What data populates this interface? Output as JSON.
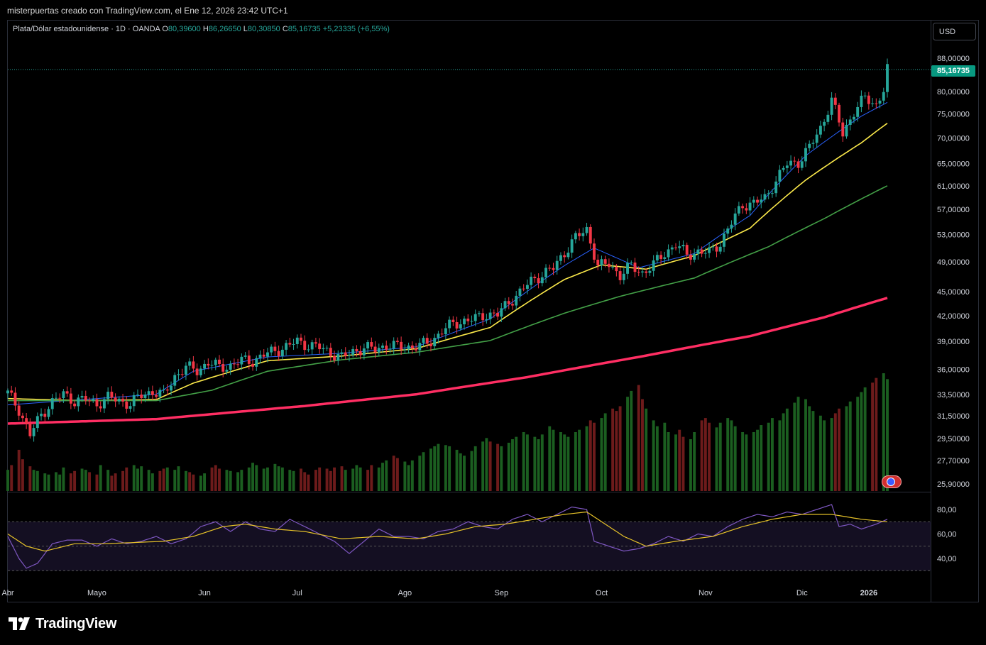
{
  "header": {
    "title": "misterpuertas creado con TradingView.com, el Ene 12, 2026 23:42 UTC+1"
  },
  "legend": {
    "symbol": "Plata/Dólar estadounidense · 1D · OANDA",
    "o_label": "O",
    "o_value": "80,39600",
    "h_label": "H",
    "h_value": "86,26650",
    "l_label": "L",
    "l_value": "80,30850",
    "c_label": "C",
    "c_value": "85,16735",
    "change": "+5,23335 (+6,55%)"
  },
  "currency_button": "USD",
  "last_price_tag": "85,16735",
  "brand": "TradingView",
  "colors": {
    "up": "#26a69a",
    "down": "#f23645",
    "volume_up": "#1b5e20",
    "volume_down": "#6d1b1b",
    "ema_fast": "#2962ff",
    "ema_mid": "#fbe94a",
    "ema_slow": "#43a047",
    "ema_long": "#ff2e63",
    "rsi": "#7e57c2",
    "rsi_ma": "#e6c229"
  },
  "chart_data": [
    {
      "type": "candlestick",
      "title": "",
      "y_axis_labels": [
        "88,00000",
        "80,00000",
        "75,00000",
        "70,00000",
        "65,00000",
        "61,00000",
        "57,00000",
        "53,00000",
        "49,00000",
        "45,00000",
        "42,00000",
        "39,00000",
        "36,00000",
        "33,50000",
        "31,50000",
        "29,50000",
        "27,70000",
        "25,90000"
      ],
      "y_axis_values": [
        88,
        80,
        75,
        70,
        65,
        61,
        57,
        53,
        49,
        45,
        42,
        39,
        36,
        33.5,
        31.5,
        29.5,
        27.7,
        25.9
      ],
      "x_axis_labels": [
        "Abr",
        "Mayo",
        "Jun",
        "Jul",
        "Ago",
        "Sep",
        "Oct",
        "Nov",
        "Dic",
        "2026"
      ],
      "scale": "log",
      "ylim": [
        25.9,
        88
      ],
      "last_close": 85.16735,
      "close_path": [
        [
          0,
          33.6
        ],
        [
          3,
          32.1
        ],
        [
          6,
          29.8
        ],
        [
          9,
          31.6
        ],
        [
          12,
          32.8
        ],
        [
          15,
          33.5
        ],
        [
          18,
          32.9
        ],
        [
          21,
          33.0
        ],
        [
          24,
          32.6
        ],
        [
          27,
          33.2
        ],
        [
          30,
          32.9
        ],
        [
          33,
          32.6
        ],
        [
          36,
          33.4
        ],
        [
          39,
          33.8
        ],
        [
          42,
          33.4
        ],
        [
          45,
          35.3
        ],
        [
          48,
          36.2
        ],
        [
          51,
          35.9
        ],
        [
          54,
          36.7
        ],
        [
          57,
          36.2
        ],
        [
          60,
          36.4
        ],
        [
          63,
          36.9
        ],
        [
          66,
          36.9
        ],
        [
          69,
          37.5
        ],
        [
          72,
          38.0
        ],
        [
          75,
          38.4
        ],
        [
          78,
          39.0
        ],
        [
          81,
          38.6
        ],
        [
          84,
          38.3
        ],
        [
          87,
          37.8
        ],
        [
          90,
          37.2
        ],
        [
          93,
          37.9
        ],
        [
          96,
          38.3
        ],
        [
          99,
          38.1
        ],
        [
          102,
          38.6
        ],
        [
          105,
          38.4
        ],
        [
          108,
          38.4
        ],
        [
          111,
          38.5
        ],
        [
          114,
          39.0
        ],
        [
          117,
          40.2
        ],
        [
          120,
          41.0
        ],
        [
          123,
          41.4
        ],
        [
          126,
          41.6
        ],
        [
          129,
          42.2
        ],
        [
          132,
          42.1
        ],
        [
          135,
          43.7
        ],
        [
          138,
          44.9
        ],
        [
          141,
          46.4
        ],
        [
          144,
          47.3
        ],
        [
          147,
          48.1
        ],
        [
          150,
          50.4
        ],
        [
          153,
          52.5
        ],
        [
          156,
          53.8
        ],
        [
          159,
          48.4
        ],
        [
          162,
          48.7
        ],
        [
          165,
          47.2
        ],
        [
          168,
          48.4
        ],
        [
          171,
          47.5
        ],
        [
          174,
          48.6
        ],
        [
          177,
          50.3
        ],
        [
          180,
          51.5
        ],
        [
          183,
          50.0
        ],
        [
          186,
          50.5
        ],
        [
          189,
          50.3
        ],
        [
          192,
          51.8
        ],
        [
          195,
          54.8
        ],
        [
          198,
          57.8
        ],
        [
          201,
          58.0
        ],
        [
          204,
          58.8
        ],
        [
          207,
          62.0
        ],
        [
          210,
          64.9
        ],
        [
          213,
          65.3
        ],
        [
          216,
          68.0
        ],
        [
          219,
          72.0
        ],
        [
          222,
          78.0
        ],
        [
          225,
          70.8
        ],
        [
          228,
          75.5
        ],
        [
          231,
          78.5
        ],
        [
          234,
          77.0
        ],
        [
          236,
          80.4
        ],
        [
          237,
          85.17
        ]
      ],
      "moving_averages": [
        {
          "name": "",
          "color_key": "ema_fast",
          "points": [
            [
              0,
              32.5
            ],
            [
              20,
              33.0
            ],
            [
              40,
              33.5
            ],
            [
              50,
              35.8
            ],
            [
              70,
              37.3
            ],
            [
              90,
              37.7
            ],
            [
              110,
              38.4
            ],
            [
              130,
              41.6
            ],
            [
              150,
              48.5
            ],
            [
              158,
              51.0
            ],
            [
              170,
              48.2
            ],
            [
              185,
              50.2
            ],
            [
              200,
              56.0
            ],
            [
              215,
              66.5
            ],
            [
              230,
              74.5
            ],
            [
              237,
              77.5
            ]
          ]
        },
        {
          "name": "",
          "color_key": "ema_mid",
          "points": [
            [
              0,
              33.1
            ],
            [
              20,
              32.9
            ],
            [
              40,
              33.0
            ],
            [
              50,
              34.6
            ],
            [
              70,
              36.9
            ],
            [
              90,
              37.4
            ],
            [
              110,
              38.2
            ],
            [
              130,
              40.6
            ],
            [
              150,
              46.6
            ],
            [
              160,
              48.6
            ],
            [
              172,
              48.0
            ],
            [
              185,
              49.9
            ],
            [
              200,
              54.0
            ],
            [
              215,
              62.0
            ],
            [
              230,
              69.0
            ],
            [
              237,
              73.0
            ]
          ]
        },
        {
          "name": "",
          "color_key": "ema_slow",
          "points": [
            [
              0,
              32.9
            ],
            [
              20,
              32.9
            ],
            [
              40,
              32.9
            ],
            [
              55,
              33.9
            ],
            [
              70,
              35.8
            ],
            [
              90,
              37.0
            ],
            [
              110,
              37.8
            ],
            [
              130,
              39.1
            ],
            [
              150,
              42.3
            ],
            [
              165,
              44.4
            ],
            [
              185,
              46.8
            ],
            [
              205,
              51.2
            ],
            [
              220,
              55.5
            ],
            [
              237,
              61.0
            ]
          ]
        },
        {
          "name": "",
          "color_key": "ema_long",
          "points": [
            [
              0,
              30.8
            ],
            [
              40,
              31.2
            ],
            [
              80,
              32.4
            ],
            [
              110,
              33.5
            ],
            [
              140,
              35.2
            ],
            [
              170,
              37.3
            ],
            [
              200,
              39.6
            ],
            [
              220,
              41.8
            ],
            [
              237,
              44.2
            ]
          ]
        }
      ]
    },
    {
      "type": "bar",
      "title": "",
      "series": [
        {
          "name": "",
          "values": [
            0.18,
            0.22,
            0.35,
            0.27,
            0.21,
            0.18,
            0.17,
            0.15,
            0.14,
            0.16,
            0.14,
            0.2,
            0.15,
            0.17,
            0.19,
            0.18,
            0.16,
            0.14,
            0.22,
            0.18,
            0.13,
            0.15,
            0.17,
            0.2,
            0.22,
            0.19,
            0.21,
            0.18,
            0.15,
            0.17,
            0.19,
            0.2,
            0.18,
            0.21,
            0.17,
            0.16,
            0.14,
            0.13,
            0.15,
            0.2,
            0.22,
            0.19,
            0.18,
            0.17,
            0.16,
            0.18,
            0.2,
            0.24,
            0.22,
            0.19,
            0.2,
            0.23,
            0.21,
            0.2,
            0.18,
            0.17,
            0.19,
            0.16,
            0.14,
            0.18,
            0.2,
            0.19,
            0.17,
            0.2,
            0.21,
            0.18,
            0.19,
            0.22,
            0.2,
            0.18,
            0.22,
            0.2,
            0.24,
            0.26,
            0.3,
            0.28,
            0.25,
            0.22,
            0.26,
            0.3,
            0.33,
            0.36,
            0.38,
            0.4,
            0.39,
            0.38,
            0.35,
            0.32,
            0.3,
            0.34,
            0.38,
            0.42,
            0.45,
            0.42,
            0.4,
            0.38,
            0.41,
            0.44,
            0.46,
            0.5,
            0.48,
            0.46,
            0.44,
            0.48,
            0.55,
            0.52,
            0.5,
            0.48,
            0.46,
            0.5,
            0.52,
            0.55,
            0.6,
            0.58,
            0.62,
            0.66,
            0.7,
            0.68,
            0.72,
            0.8,
            0.85,
            0.9,
            0.78,
            0.7,
            0.6,
            0.55,
            0.58,
            0.5,
            0.48,
            0.52,
            0.46,
            0.44,
            0.5,
            0.6,
            0.62,
            0.58,
            0.54,
            0.58,
            0.62,
            0.6,
            0.55,
            0.5,
            0.48,
            0.5,
            0.52,
            0.56,
            0.58,
            0.62,
            0.6,
            0.66,
            0.7,
            0.75,
            0.8,
            0.78,
            0.72,
            0.68,
            0.64,
            0.6,
            0.62,
            0.66,
            0.7,
            0.72,
            0.76,
            0.8,
            0.84,
            0.88,
            0.92,
            0.96,
            1.0,
            0.95
          ]
        }
      ]
    },
    {
      "type": "line",
      "title": "",
      "y_axis_labels": [
        "80,00",
        "60,00",
        "40,00"
      ],
      "y_axis_values": [
        80,
        60,
        40
      ],
      "bands": [
        70,
        50,
        30
      ],
      "ylim": [
        25,
        90
      ],
      "series": [
        {
          "name": "",
          "color_key": "rsi",
          "points": [
            [
              0,
              58
            ],
            [
              3,
              40
            ],
            [
              5,
              32
            ],
            [
              8,
              36
            ],
            [
              12,
              52
            ],
            [
              16,
              55
            ],
            [
              20,
              55
            ],
            [
              24,
              50
            ],
            [
              28,
              56
            ],
            [
              32,
              52
            ],
            [
              36,
              54
            ],
            [
              40,
              58
            ],
            [
              44,
              52
            ],
            [
              48,
              56
            ],
            [
              52,
              66
            ],
            [
              56,
              70
            ],
            [
              60,
              62
            ],
            [
              64,
              70
            ],
            [
              68,
              64
            ],
            [
              72,
              62
            ],
            [
              76,
              72
            ],
            [
              80,
              66
            ],
            [
              84,
              60
            ],
            [
              88,
              54
            ],
            [
              92,
              44
            ],
            [
              96,
              54
            ],
            [
              100,
              64
            ],
            [
              104,
              58
            ],
            [
              108,
              58
            ],
            [
              112,
              56
            ],
            [
              116,
              62
            ],
            [
              120,
              64
            ],
            [
              124,
              70
            ],
            [
              128,
              66
            ],
            [
              132,
              64
            ],
            [
              136,
              72
            ],
            [
              140,
              76
            ],
            [
              144,
              70
            ],
            [
              148,
              76
            ],
            [
              152,
              82
            ],
            [
              156,
              80
            ],
            [
              158,
              54
            ],
            [
              162,
              50
            ],
            [
              166,
              46
            ],
            [
              170,
              48
            ],
            [
              174,
              52
            ],
            [
              178,
              58
            ],
            [
              182,
              54
            ],
            [
              186,
              60
            ],
            [
              190,
              58
            ],
            [
              194,
              66
            ],
            [
              198,
              72
            ],
            [
              202,
              76
            ],
            [
              206,
              74
            ],
            [
              210,
              78
            ],
            [
              214,
              76
            ],
            [
              218,
              80
            ],
            [
              222,
              84
            ],
            [
              224,
              66
            ],
            [
              227,
              68
            ],
            [
              230,
              64
            ],
            [
              234,
              68
            ],
            [
              237,
              72
            ]
          ]
        },
        {
          "name": "",
          "color_key": "rsi_ma",
          "points": [
            [
              0,
              60
            ],
            [
              5,
              50
            ],
            [
              10,
              46
            ],
            [
              18,
              52
            ],
            [
              26,
              52
            ],
            [
              34,
              53
            ],
            [
              42,
              54
            ],
            [
              50,
              58
            ],
            [
              58,
              66
            ],
            [
              64,
              68
            ],
            [
              72,
              64
            ],
            [
              80,
              62
            ],
            [
              90,
              56
            ],
            [
              100,
              58
            ],
            [
              110,
              56
            ],
            [
              118,
              60
            ],
            [
              126,
              66
            ],
            [
              134,
              68
            ],
            [
              142,
              72
            ],
            [
              150,
              76
            ],
            [
              156,
              78
            ],
            [
              160,
              70
            ],
            [
              166,
              58
            ],
            [
              172,
              50
            ],
            [
              180,
              54
            ],
            [
              190,
              58
            ],
            [
              198,
              66
            ],
            [
              206,
              72
            ],
            [
              214,
              76
            ],
            [
              222,
              76
            ],
            [
              230,
              72
            ],
            [
              237,
              70
            ]
          ]
        }
      ]
    }
  ]
}
